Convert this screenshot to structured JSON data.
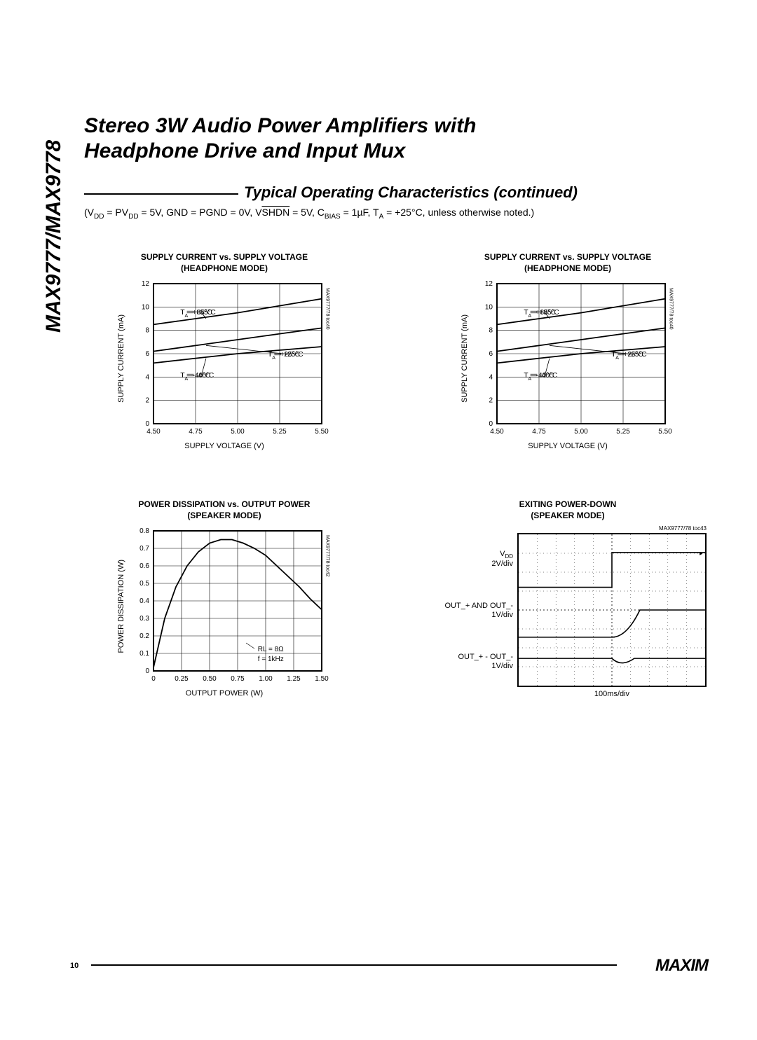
{
  "page_title_line1": "Stereo 3W Audio Power Amplifiers with",
  "page_title_line2": "Headphone Drive and Input Mux",
  "side_label": "MAX9777/MAX9778",
  "section_title": "Typical Operating Characteristics (continued)",
  "conditions_html": "(V<sub>DD</sub> = PV<sub>DD</sub> = 5V, GND = PGND = 0V, V<span class=\"ov\">SHDN</span> = 5V, C<sub>BIAS</sub> = 1µF, T<sub>A</sub> = +25°C, unless otherwise noted.)",
  "chart1": {
    "title_l1": "SUPPLY CURRENT vs. SUPPLY VOLTAGE",
    "title_l2": "(HEADPHONE MODE)",
    "ylabel": "SUPPLY CURRENT (mA)",
    "xlabel": "SUPPLY VOLTAGE (V)",
    "xticks": [
      "4.50",
      "4.75",
      "5.00",
      "5.25",
      "5.50"
    ],
    "yticks": [
      "0",
      "2",
      "4",
      "6",
      "8",
      "10",
      "12"
    ],
    "xlim": [
      4.5,
      5.5
    ],
    "ylim": [
      0,
      12
    ],
    "toc_ref": "MAX9777/78 toc40",
    "series": [
      {
        "label": "Tₐ = +85°C",
        "label_pos": [
          0.16,
          0.78
        ],
        "pts": [
          [
            4.5,
            8.5
          ],
          [
            4.75,
            9.0
          ],
          [
            5.0,
            9.5
          ],
          [
            5.25,
            10.1
          ],
          [
            5.5,
            10.7
          ]
        ]
      },
      {
        "label": "Tₐ = +25°C",
        "label_pos": [
          0.68,
          0.48
        ],
        "pts": [
          [
            4.5,
            6.2
          ],
          [
            4.75,
            6.7
          ],
          [
            5.0,
            7.2
          ],
          [
            5.25,
            7.7
          ],
          [
            5.5,
            8.2
          ]
        ]
      },
      {
        "label": "Tₐ = -40°C",
        "label_pos": [
          0.16,
          0.33
        ],
        "pts": [
          [
            4.5,
            5.2
          ],
          [
            4.75,
            5.6
          ],
          [
            5.0,
            6.0
          ],
          [
            5.25,
            6.3
          ],
          [
            5.5,
            6.6
          ]
        ]
      }
    ]
  },
  "chart2": {
    "title_l1": "SUPPLY CURRENT vs. SUPPLY VOLTAGE",
    "title_l2": "(HEADPHONE MODE)",
    "ylabel": "SUPPLY CURRENT (mA)",
    "xlabel": "SUPPLY VOLTAGE (V)",
    "xticks": [
      "4.50",
      "4.75",
      "5.00",
      "5.25",
      "5.50"
    ],
    "yticks": [
      "0",
      "2",
      "4",
      "6",
      "8",
      "10",
      "12"
    ],
    "xlim": [
      4.5,
      5.5
    ],
    "ylim": [
      0,
      12
    ],
    "toc_ref": "MAX9777/78 toc40",
    "series": [
      {
        "label": "Tₐ = +85°C",
        "label_pos": [
          0.16,
          0.78
        ],
        "pts": [
          [
            4.5,
            8.5
          ],
          [
            4.75,
            9.0
          ],
          [
            5.0,
            9.5
          ],
          [
            5.25,
            10.1
          ],
          [
            5.5,
            10.7
          ]
        ]
      },
      {
        "label": "Tₐ = +25°C",
        "label_pos": [
          0.68,
          0.48
        ],
        "pts": [
          [
            4.5,
            6.2
          ],
          [
            4.75,
            6.7
          ],
          [
            5.0,
            7.2
          ],
          [
            5.25,
            7.7
          ],
          [
            5.5,
            8.2
          ]
        ]
      },
      {
        "label": "Tₐ = -40°C",
        "label_pos": [
          0.16,
          0.33
        ],
        "pts": [
          [
            4.5,
            5.2
          ],
          [
            4.75,
            5.6
          ],
          [
            5.0,
            6.0
          ],
          [
            5.25,
            6.3
          ],
          [
            5.5,
            6.6
          ]
        ]
      }
    ]
  },
  "chart3": {
    "title_l1": "POWER DISSIPATION vs. OUTPUT POWER",
    "title_l2": "(SPEAKER MODE)",
    "ylabel": "POWER DISSIPATION (W)",
    "xlabel": "OUTPUT POWER (W)",
    "xticks": [
      "0",
      "0.25",
      "0.50",
      "0.75",
      "1.00",
      "1.25",
      "1.50"
    ],
    "yticks": [
      "0",
      "0.1",
      "0.2",
      "0.3",
      "0.4",
      "0.5",
      "0.6",
      "0.7",
      "0.8"
    ],
    "xlim": [
      0,
      1.5
    ],
    "ylim": [
      0,
      0.8
    ],
    "toc_ref": "MAX9777/78 toc42",
    "annot_l1": "Rₗ = 8Ω",
    "annot_l2": "f = 1kHz",
    "series": [
      {
        "pts": [
          [
            0,
            0.02
          ],
          [
            0.1,
            0.3
          ],
          [
            0.2,
            0.48
          ],
          [
            0.3,
            0.6
          ],
          [
            0.4,
            0.68
          ],
          [
            0.5,
            0.73
          ],
          [
            0.6,
            0.75
          ],
          [
            0.7,
            0.75
          ],
          [
            0.8,
            0.73
          ],
          [
            0.9,
            0.7
          ],
          [
            1.0,
            0.66
          ],
          [
            1.1,
            0.6
          ],
          [
            1.2,
            0.54
          ],
          [
            1.3,
            0.48
          ],
          [
            1.4,
            0.41
          ],
          [
            1.5,
            0.35
          ]
        ]
      }
    ]
  },
  "scope": {
    "title_l1": "EXITING POWER-DOWN",
    "title_l2": "(SPEAKER MODE)",
    "toc_ref": "MAX9777/78 toc43",
    "xlabel": "100ms/div",
    "traces": [
      {
        "label_l1": "V<sub>DD</sub>",
        "label_l2": "2V/div",
        "y": 0.22,
        "type": "step",
        "step_x": 0.5,
        "low": 0.35,
        "high": 0.12
      },
      {
        "label_l1": "OUT_+ AND OUT_-",
        "label_l2": "1V/div",
        "y": 0.52,
        "type": "rise",
        "step_x": 0.5,
        "low": 0.68,
        "high": 0.5
      },
      {
        "label_l1": "OUT_+ - OUT_-",
        "label_l2": "1V/div",
        "y": 0.82,
        "type": "bump",
        "step_x": 0.5,
        "base": 0.82,
        "dip": 0.88
      }
    ]
  },
  "page_number": "10",
  "logo": "MAXIM"
}
